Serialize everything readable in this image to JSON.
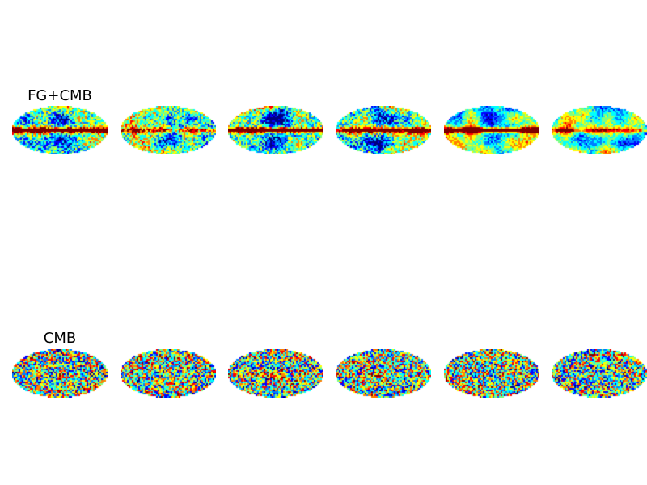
{
  "rows": [
    {
      "title": "FG+CMB",
      "kind": "foreground",
      "maps": [
        {
          "variant": 0,
          "band": "strong"
        },
        {
          "variant": 1,
          "band": "weak"
        },
        {
          "variant": 2,
          "band": "strong"
        },
        {
          "variant": 3,
          "band": "medium"
        },
        {
          "variant": 4,
          "band": "strong-smooth"
        },
        {
          "variant": 5,
          "band": "weak-smooth"
        }
      ]
    },
    {
      "title": "CMB",
      "kind": "cmb",
      "maps": [
        {
          "variant": 0
        },
        {
          "variant": 1
        },
        {
          "variant": 2
        },
        {
          "variant": 3
        },
        {
          "variant": 4
        },
        {
          "variant": 5
        }
      ]
    }
  ],
  "colormap": [
    "#00007f",
    "#0000ff",
    "#007fff",
    "#00ffff",
    "#7fff7f",
    "#ffff00",
    "#ff7f00",
    "#ff0000",
    "#7f0000"
  ]
}
